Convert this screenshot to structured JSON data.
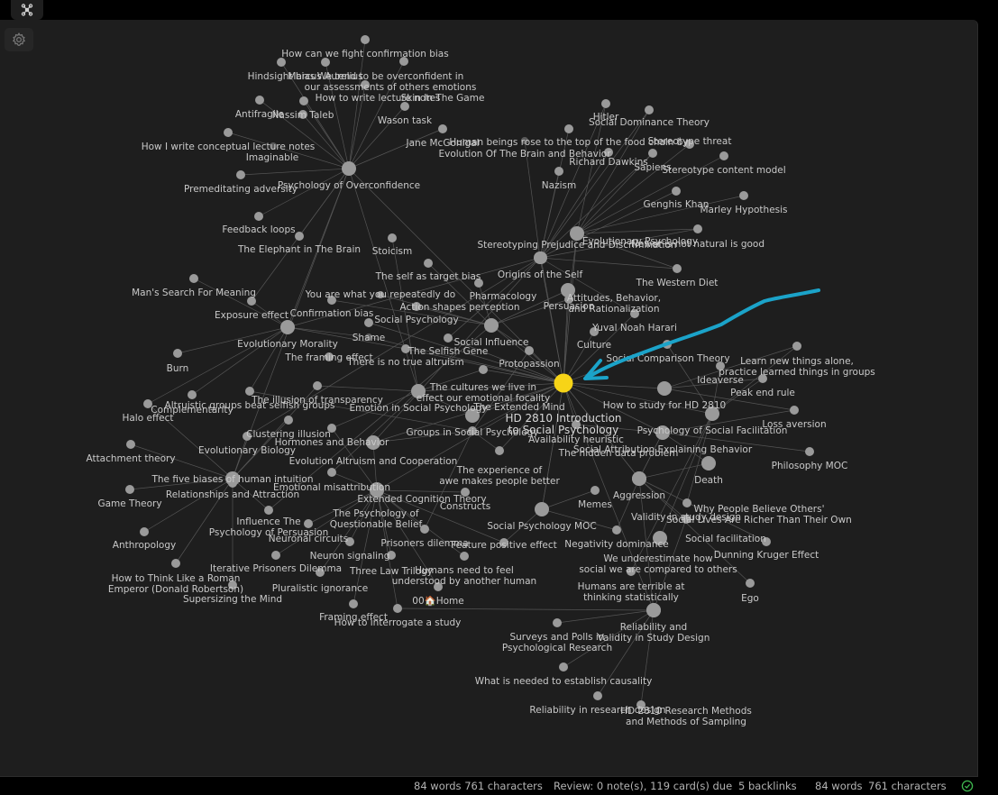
{
  "colors": {
    "background": "#1e1e1e",
    "node": "#9a9a9a",
    "node_dim": "#5a5a5a",
    "edge": "#555555",
    "active_node": "#f7d417",
    "annotation_arrow": "#1ba3c9",
    "sync_ok": "#3fb950"
  },
  "toolbar": {
    "graph_tab_icon": "graph-icon",
    "settings_icon": "gear-icon"
  },
  "annotation": {
    "icon": "arrow-annotation"
  },
  "graph": {
    "nodes": [
      {
        "id": "n1",
        "label": "How can we fight confirmation bias"
      },
      {
        "id": "n2",
        "label": "Hindsight bias"
      },
      {
        "id": "n3",
        "label": "Marcus Aurelius"
      },
      {
        "id": "n4",
        "label": "We tend to be overconfident in our assessments of others emotions"
      },
      {
        "id": "n5",
        "label": "How to write lecture notes"
      },
      {
        "id": "n6",
        "label": "Skin In The Game"
      },
      {
        "id": "n7",
        "label": "Antifragile"
      },
      {
        "id": "n8",
        "label": "Nassim Taleb"
      },
      {
        "id": "n9",
        "label": "Wason task"
      },
      {
        "id": "n10",
        "label": "Jane McGonigal"
      },
      {
        "id": "n11",
        "label": "How I write conceptual lecture notes"
      },
      {
        "id": "n12",
        "label": "Imaginable"
      },
      {
        "id": "n13",
        "label": "Premeditating adversity"
      },
      {
        "id": "n14",
        "label": "Psychology of Overconfidence"
      },
      {
        "id": "n15",
        "label": "Feedback loops"
      },
      {
        "id": "n16",
        "label": "The Elephant in The Brain"
      },
      {
        "id": "n17",
        "label": "Stoicism"
      },
      {
        "id": "n18",
        "label": "The self as target bias"
      },
      {
        "id": "n19",
        "label": "Man's Search For Meaning"
      },
      {
        "id": "n20",
        "label": "You are what you repeatedly do"
      },
      {
        "id": "n21",
        "label": "Pharmacology"
      },
      {
        "id": "n22",
        "label": "Origins of the Self"
      },
      {
        "id": "n23",
        "label": "Action shapes perception"
      },
      {
        "id": "n24",
        "label": "Exposure effect"
      },
      {
        "id": "n25",
        "label": "Confirmation bias"
      },
      {
        "id": "n26",
        "label": "Social Psychology"
      },
      {
        "id": "n27",
        "label": "Evolutionary Morality"
      },
      {
        "id": "n28",
        "label": "Shame"
      },
      {
        "id": "n29",
        "label": "The Selfish Gene"
      },
      {
        "id": "n30",
        "label": "Social Influence"
      },
      {
        "id": "n31",
        "label": "The framing effect"
      },
      {
        "id": "n32",
        "label": "There is no true altruism"
      },
      {
        "id": "n33",
        "label": "Protopassion"
      },
      {
        "id": "n34",
        "label": "Burn"
      },
      {
        "id": "n35",
        "label": "The cultures we live in effect our emotional focality"
      },
      {
        "id": "n36",
        "label": "The illusion of transparency"
      },
      {
        "id": "n37",
        "label": "Altruistic groups beat selfish groups"
      },
      {
        "id": "n38",
        "label": "Complementarity"
      },
      {
        "id": "n39",
        "label": "Emotion in Social Psychology"
      },
      {
        "id": "n40",
        "label": "The Extended Mind"
      },
      {
        "id": "n41",
        "label": "Halo effect"
      },
      {
        "id": "n42",
        "label": "Clustering illusion"
      },
      {
        "id": "n43",
        "label": "Hormones and Behavior"
      },
      {
        "id": "n44",
        "label": "Groups in Social Psychology"
      },
      {
        "id": "n45",
        "label": "Evolutionary Biology"
      },
      {
        "id": "n46",
        "label": "Attachment theory"
      },
      {
        "id": "n47",
        "label": "Evolution Altruism and Cooperation"
      },
      {
        "id": "n48",
        "label": "The experience of awe makes people better"
      },
      {
        "id": "n49",
        "label": "The five biases of human intuition"
      },
      {
        "id": "n50",
        "label": "Emotional misattribution"
      },
      {
        "id": "n51",
        "label": "Relationships and Attraction"
      },
      {
        "id": "n52",
        "label": "Extended Cognition Theory"
      },
      {
        "id": "n53",
        "label": "Game Theory"
      },
      {
        "id": "n54",
        "label": "The Psychology of Questionable Belief"
      },
      {
        "id": "n55",
        "label": "Constructs"
      },
      {
        "id": "n56",
        "label": "Influence The Psychology of Persuasion"
      },
      {
        "id": "n57",
        "label": "Social Psychology MOC"
      },
      {
        "id": "n58",
        "label": "Anthropology"
      },
      {
        "id": "n59",
        "label": "Neuronal circuits"
      },
      {
        "id": "n60",
        "label": "Prisoners dilemma"
      },
      {
        "id": "n61",
        "label": "Feature positive effect"
      },
      {
        "id": "n62",
        "label": "Neuron signaling"
      },
      {
        "id": "n63",
        "label": "How to Think Like a Roman Emperor (Donald Robertson)"
      },
      {
        "id": "n64",
        "label": "Iterative Prisoners Dilemma"
      },
      {
        "id": "n65",
        "label": "Three Law Trilogy"
      },
      {
        "id": "n66",
        "label": "Humans need to feel understood by another human"
      },
      {
        "id": "n67",
        "label": "Pluralistic ignorance"
      },
      {
        "id": "n68",
        "label": "Supersizing the Mind"
      },
      {
        "id": "n69",
        "label": "00🏠Home"
      },
      {
        "id": "n70",
        "label": "Framing effect"
      },
      {
        "id": "n71",
        "label": "How to interrogate a study"
      },
      {
        "id": "n72",
        "label": "HD 2810 Introduction to Social Psychology"
      },
      {
        "id": "n73",
        "label": "Hitler"
      },
      {
        "id": "n74",
        "label": "Social Dominance Theory"
      },
      {
        "id": "n75",
        "label": "Human beings rose to the top of the food chain by"
      },
      {
        "id": "n76",
        "label": "Evolution Of The Brain and Behavior"
      },
      {
        "id": "n77",
        "label": "Stereotype threat"
      },
      {
        "id": "n78",
        "label": "Richard Dawkins"
      },
      {
        "id": "n79",
        "label": "Sapiens"
      },
      {
        "id": "n80",
        "label": "Stereotype content model"
      },
      {
        "id": "n81",
        "label": "Nazism"
      },
      {
        "id": "n82",
        "label": "Genghis Khan"
      },
      {
        "id": "n83",
        "label": "Marley Hypothesis"
      },
      {
        "id": "n84",
        "label": "Stereotyping Prejudice and Discrimination"
      },
      {
        "id": "n85",
        "label": "Newer is not natural is good"
      },
      {
        "id": "n86",
        "label": "Evolutionary Psychology"
      },
      {
        "id": "n87",
        "label": "The Western Diet"
      },
      {
        "id": "n88",
        "label": "Attitudes, Behavior, and Rationalization"
      },
      {
        "id": "n89",
        "label": "Persuasion"
      },
      {
        "id": "n90",
        "label": "Yuval Noah Harari"
      },
      {
        "id": "n91",
        "label": "Culture"
      },
      {
        "id": "n92",
        "label": "Social Comparison Theory"
      },
      {
        "id": "n93",
        "label": "Learn new things alone, practice learned things in groups"
      },
      {
        "id": "n94",
        "label": "Ideaverse"
      },
      {
        "id": "n95",
        "label": "Peak end rule"
      },
      {
        "id": "n96",
        "label": "How to study for HD 2810"
      },
      {
        "id": "n97",
        "label": "Loss aversion"
      },
      {
        "id": "n98",
        "label": "Psychology of Social Facilitation"
      },
      {
        "id": "n99",
        "label": "Availability heuristic"
      },
      {
        "id": "n100",
        "label": "Social Attribution Explaining Behavior"
      },
      {
        "id": "n101",
        "label": "The hidden data problem"
      },
      {
        "id": "n102",
        "label": "Philosophy MOC"
      },
      {
        "id": "n103",
        "label": "Death"
      },
      {
        "id": "n104",
        "label": "Memes"
      },
      {
        "id": "n105",
        "label": "Aggression"
      },
      {
        "id": "n106",
        "label": "Why People Believe Others' Social Lives Are Richer Than Their Own"
      },
      {
        "id": "n107",
        "label": "Validity in study design"
      },
      {
        "id": "n108",
        "label": "Social facilitation"
      },
      {
        "id": "n109",
        "label": "Negativity dominance"
      },
      {
        "id": "n110",
        "label": "Dunning Kruger Effect"
      },
      {
        "id": "n111",
        "label": "We underestimate how social we are compared to others"
      },
      {
        "id": "n112",
        "label": "Ego"
      },
      {
        "id": "n113",
        "label": "Humans are terrible at thinking statistically"
      },
      {
        "id": "n114",
        "label": "Reliability and Validity in Study Design"
      },
      {
        "id": "n115",
        "label": "Surveys and Polls in Psychological Research"
      },
      {
        "id": "n116",
        "label": "What is needed to establish causality"
      },
      {
        "id": "n117",
        "label": "Reliability in research design"
      },
      {
        "id": "n118",
        "label": "HD 2810 Research Methods and Methods of Sampling"
      }
    ],
    "edges": [
      [
        "n14",
        "n1"
      ],
      [
        "n14",
        "n2"
      ],
      [
        "n14",
        "n3"
      ],
      [
        "n14",
        "n4"
      ],
      [
        "n14",
        "n5"
      ],
      [
        "n14",
        "n6"
      ],
      [
        "n14",
        "n7"
      ],
      [
        "n14",
        "n8"
      ],
      [
        "n14",
        "n9"
      ],
      [
        "n14",
        "n10"
      ],
      [
        "n14",
        "n11"
      ],
      [
        "n14",
        "n13"
      ],
      [
        "n14",
        "n15"
      ],
      [
        "n14",
        "n16"
      ],
      [
        "n14",
        "n27"
      ],
      [
        "n14",
        "n24"
      ],
      [
        "n14",
        "n39"
      ],
      [
        "n14",
        "n49"
      ],
      [
        "n72",
        "n14"
      ],
      [
        "n72",
        "n86"
      ],
      [
        "n72",
        "n88"
      ],
      [
        "n72",
        "n30"
      ],
      [
        "n72",
        "n39"
      ],
      [
        "n72",
        "n44"
      ],
      [
        "n72",
        "n57"
      ],
      [
        "n72",
        "n96"
      ],
      [
        "n72",
        "n98"
      ],
      [
        "n72",
        "n100"
      ],
      [
        "n72",
        "n105"
      ],
      [
        "n72",
        "n114"
      ],
      [
        "n72",
        "n92"
      ],
      [
        "n72",
        "n91"
      ],
      [
        "n72",
        "n22"
      ],
      [
        "n72",
        "n35"
      ],
      [
        "n72",
        "n54"
      ],
      [
        "n72",
        "n47"
      ],
      [
        "n72",
        "n84"
      ],
      [
        "n72",
        "n33"
      ],
      [
        "n72",
        "n89"
      ],
      [
        "n72",
        "n90"
      ],
      [
        "n72",
        "n28"
      ],
      [
        "n72",
        "n32"
      ],
      [
        "n72",
        "n29"
      ],
      [
        "n72",
        "n26"
      ],
      [
        "n72",
        "n48"
      ],
      [
        "n72",
        "n101"
      ],
      [
        "n72",
        "n99"
      ],
      [
        "n72",
        "n40"
      ],
      [
        "n86",
        "n73"
      ],
      [
        "n86",
        "n74"
      ],
      [
        "n86",
        "n75"
      ],
      [
        "n86",
        "n76"
      ],
      [
        "n86",
        "n78"
      ],
      [
        "n86",
        "n79"
      ],
      [
        "n86",
        "n81"
      ],
      [
        "n86",
        "n82"
      ],
      [
        "n86",
        "n90"
      ],
      [
        "n86",
        "n85"
      ],
      [
        "n86",
        "n87"
      ],
      [
        "n86",
        "n22"
      ],
      [
        "n86",
        "n29"
      ],
      [
        "n86",
        "n27"
      ],
      [
        "n86",
        "n45"
      ],
      [
        "n86",
        "n47"
      ],
      [
        "n84",
        "n74"
      ],
      [
        "n84",
        "n77"
      ],
      [
        "n84",
        "n80"
      ],
      [
        "n84",
        "n83"
      ],
      [
        "n84",
        "n73"
      ],
      [
        "n84",
        "n79"
      ],
      [
        "n84",
        "n87"
      ],
      [
        "n84",
        "n85"
      ],
      [
        "n84",
        "n89"
      ],
      [
        "n30",
        "n21"
      ],
      [
        "n30",
        "n23"
      ],
      [
        "n30",
        "n20"
      ],
      [
        "n30",
        "n18"
      ],
      [
        "n30",
        "n25"
      ],
      [
        "n30",
        "n89"
      ],
      [
        "n30",
        "n88"
      ],
      [
        "n30",
        "n33"
      ],
      [
        "n30",
        "n56"
      ],
      [
        "n27",
        "n19"
      ],
      [
        "n27",
        "n24"
      ],
      [
        "n27",
        "n34"
      ],
      [
        "n27",
        "n41"
      ],
      [
        "n27",
        "n38"
      ],
      [
        "n27",
        "n37"
      ],
      [
        "n27",
        "n28"
      ],
      [
        "n27",
        "n32"
      ],
      [
        "n49",
        "n42"
      ],
      [
        "n49",
        "n46"
      ],
      [
        "n49",
        "n53"
      ],
      [
        "n49",
        "n51"
      ],
      [
        "n49",
        "n58"
      ],
      [
        "n49",
        "n63"
      ],
      [
        "n49",
        "n68"
      ],
      [
        "n49",
        "n56"
      ],
      [
        "n49",
        "n45"
      ],
      [
        "n49",
        "n36"
      ],
      [
        "n49",
        "n41"
      ],
      [
        "n54",
        "n47"
      ],
      [
        "n54",
        "n52"
      ],
      [
        "n54",
        "n50"
      ],
      [
        "n54",
        "n59"
      ],
      [
        "n54",
        "n62"
      ],
      [
        "n54",
        "n64"
      ],
      [
        "n54",
        "n65"
      ],
      [
        "n54",
        "n66"
      ],
      [
        "n54",
        "n67"
      ],
      [
        "n54",
        "n69"
      ],
      [
        "n54",
        "n70"
      ],
      [
        "n54",
        "n71"
      ],
      [
        "n54",
        "n60"
      ],
      [
        "n54",
        "n61"
      ],
      [
        "n54",
        "n55"
      ],
      [
        "n54",
        "n43"
      ],
      [
        "n39",
        "n35"
      ],
      [
        "n39",
        "n36"
      ],
      [
        "n39",
        "n50"
      ],
      [
        "n39",
        "n43"
      ],
      [
        "n39",
        "n17"
      ],
      [
        "n39",
        "n40"
      ],
      [
        "n44",
        "n37"
      ],
      [
        "n44",
        "n47"
      ],
      [
        "n44",
        "n60"
      ],
      [
        "n44",
        "n48"
      ],
      [
        "n44",
        "n33"
      ],
      [
        "n57",
        "n61"
      ],
      [
        "n57",
        "n109"
      ],
      [
        "n57",
        "n104"
      ],
      [
        "n57",
        "n72"
      ],
      [
        "n100",
        "n101"
      ],
      [
        "n100",
        "n99"
      ],
      [
        "n100",
        "n102"
      ],
      [
        "n100",
        "n103"
      ],
      [
        "n100",
        "n105"
      ],
      [
        "n100",
        "n97"
      ],
      [
        "n98",
        "n92"
      ],
      [
        "n98",
        "n108"
      ],
      [
        "n98",
        "n106"
      ],
      [
        "n98",
        "n111"
      ],
      [
        "n98",
        "n95"
      ],
      [
        "n98",
        "n93"
      ],
      [
        "n98",
        "n94"
      ],
      [
        "n105",
        "n107"
      ],
      [
        "n105",
        "n109"
      ],
      [
        "n105",
        "n110"
      ],
      [
        "n105",
        "n112"
      ],
      [
        "n105",
        "n113"
      ],
      [
        "n105",
        "n103"
      ],
      [
        "n114",
        "n107"
      ],
      [
        "n114",
        "n113"
      ],
      [
        "n114",
        "n115"
      ],
      [
        "n114",
        "n116"
      ],
      [
        "n114",
        "n117"
      ],
      [
        "n114",
        "n118"
      ],
      [
        "n114",
        "n71"
      ],
      [
        "n96",
        "n95"
      ],
      [
        "n96",
        "n97"
      ],
      [
        "n96",
        "n93"
      ]
    ]
  },
  "status": {
    "words_left": "84 words 761 characters",
    "review": "Review: 0 note(s), 119 card(s) due",
    "backlinks": "5 backlinks",
    "words_right": "84 words",
    "chars_right": "761 characters",
    "sync_icon": "check-circle-icon"
  }
}
